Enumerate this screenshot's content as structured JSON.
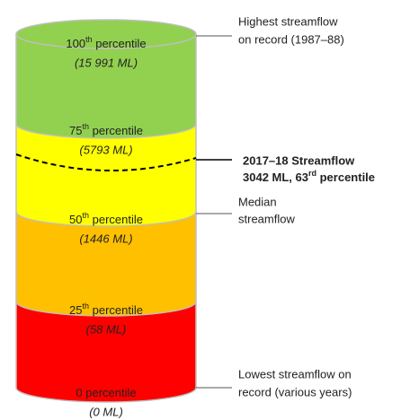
{
  "levels": [
    {
      "number": "100",
      "suffix": "th",
      "label": " percentile",
      "value": "(15 991 ML)"
    },
    {
      "number": "75",
      "suffix": "th",
      "label": " percentile",
      "value": "(5793 ML)"
    },
    {
      "number": "50",
      "suffix": "th",
      "label": " percentile",
      "value": "(1446 ML)"
    },
    {
      "number": "25",
      "suffix": "th",
      "label": " percentile",
      "value": "(58 ML)"
    },
    {
      "number": "0",
      "label": " percentile",
      "value": "(0 ML)"
    }
  ],
  "annotations": {
    "highest": [
      "Highest streamflow",
      "on record (1987–88)"
    ],
    "current": {
      "line1": "2017–18 Streamflow",
      "line2_start": "3042 ML, 63",
      "line2_sup": "rd",
      "line2_end": " percentile"
    },
    "median": [
      "Median",
      "streamflow"
    ],
    "lowest": [
      "Lowest streamflow on",
      "record (various years)"
    ]
  }
}
